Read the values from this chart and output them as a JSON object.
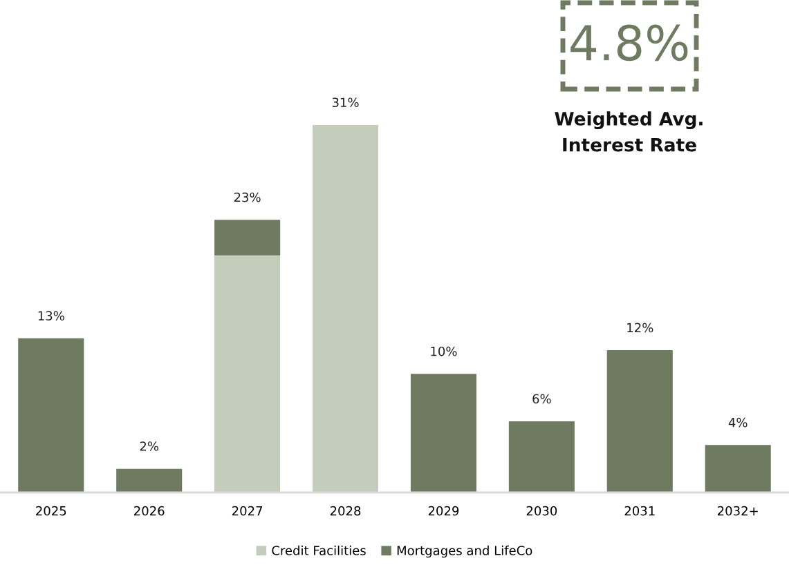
{
  "chart_data": {
    "type": "bar",
    "stacked": true,
    "categories": [
      "2025",
      "2026",
      "2027",
      "2028",
      "2029",
      "2030",
      "2031",
      "2032+"
    ],
    "series": [
      {
        "name": "Credit Facilities",
        "color": "#c4ccbc",
        "values": [
          0,
          0,
          20,
          31,
          0,
          0,
          0,
          0
        ],
        "value_labels": [
          null,
          null,
          null,
          "31%",
          null,
          null,
          null,
          null
        ]
      },
      {
        "name": "Mortgages and LifeCo",
        "color": "#6e7b60",
        "values": [
          13,
          2,
          3,
          0,
          10,
          6,
          12,
          4
        ],
        "value_labels": [
          "13%",
          "2%",
          null,
          null,
          "10%",
          "6%",
          "12%",
          "4%"
        ]
      }
    ],
    "totals": [
      null,
      null,
      "23%",
      null,
      null,
      null,
      null,
      null
    ],
    "tick_labels": "x",
    "legend": "bottom",
    "annotations": [
      "4.8%",
      "Weighted Avg.\nInterest Rate"
    ]
  }
}
